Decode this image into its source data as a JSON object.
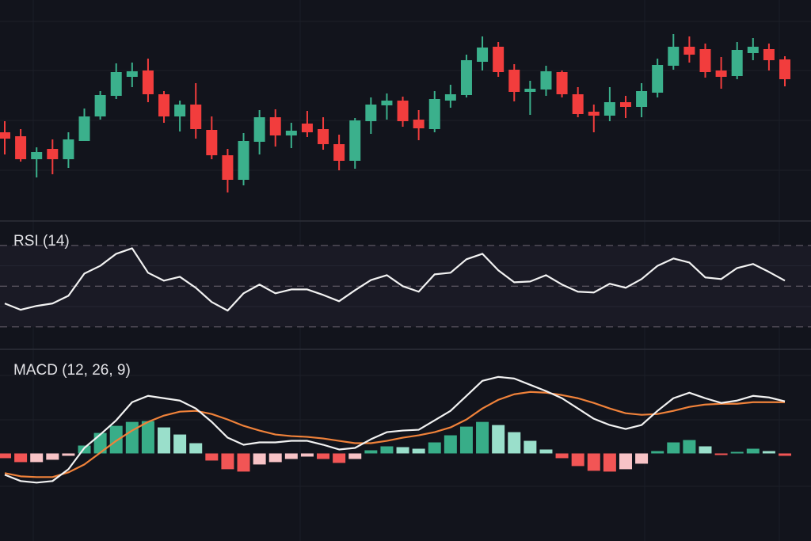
{
  "colors": {
    "background": "#12141c",
    "up": "#3bb08c",
    "down": "#f23d3d",
    "rsi_line": "#f2f2f2",
    "macd_line": "#f2f2f2",
    "signal_line": "#f0823a",
    "hist_up_strong": "#38ad88",
    "hist_up_weak": "#9adfcb",
    "hist_down_strong": "#f25555",
    "hist_down_weak": "#f8c3c6"
  },
  "chart_data": [
    {
      "type": "candlestick",
      "grid": true,
      "ohlc": [
        [
          133,
          147,
          105,
          125
        ],
        [
          128,
          137,
          96,
          99
        ],
        [
          99,
          114,
          76,
          108
        ],
        [
          112,
          124,
          80,
          99
        ],
        [
          99,
          133,
          88,
          124
        ],
        [
          122,
          163,
          122,
          153
        ],
        [
          153,
          185,
          149,
          180
        ],
        [
          179,
          220,
          175,
          209
        ],
        [
          203,
          221,
          190,
          210
        ],
        [
          211,
          226,
          171,
          181
        ],
        [
          181,
          185,
          145,
          153
        ],
        [
          153,
          173,
          134,
          168
        ],
        [
          168,
          195,
          125,
          137
        ],
        [
          136,
          153,
          99,
          104
        ],
        [
          104,
          112,
          57,
          73
        ],
        [
          73,
          132,
          66,
          122
        ],
        [
          121,
          161,
          105,
          152
        ],
        [
          152,
          162,
          115,
          129
        ],
        [
          129,
          145,
          113,
          135
        ],
        [
          144,
          160,
          127,
          133
        ],
        [
          137,
          152,
          111,
          118
        ],
        [
          118,
          130,
          85,
          97
        ],
        [
          97,
          151,
          87,
          148
        ],
        [
          147,
          177,
          131,
          168
        ],
        [
          167,
          182,
          149,
          173
        ],
        [
          173,
          178,
          140,
          147
        ],
        [
          149,
          161,
          123,
          138
        ],
        [
          137,
          185,
          133,
          175
        ],
        [
          173,
          193,
          164,
          181
        ],
        [
          180,
          231,
          177,
          224
        ],
        [
          222,
          254,
          211,
          240
        ],
        [
          241,
          247,
          203,
          209
        ],
        [
          212,
          219,
          172,
          184
        ],
        [
          184,
          198,
          155,
          188
        ],
        [
          187,
          217,
          179,
          210
        ],
        [
          209,
          211,
          177,
          181
        ],
        [
          181,
          190,
          152,
          156
        ],
        [
          159,
          168,
          133,
          154
        ],
        [
          154,
          190,
          147,
          171
        ],
        [
          171,
          179,
          151,
          165
        ],
        [
          165,
          195,
          152,
          185
        ],
        [
          183,
          226,
          177,
          218
        ],
        [
          217,
          257,
          212,
          241
        ],
        [
          241,
          254,
          221,
          231
        ],
        [
          238,
          245,
          202,
          209
        ],
        [
          211,
          228,
          188,
          203
        ],
        [
          204,
          247,
          200,
          237
        ],
        [
          233,
          252,
          224,
          241
        ],
        [
          238,
          245,
          211,
          224
        ],
        [
          225,
          229,
          191,
          200
        ]
      ]
    },
    {
      "type": "line",
      "title": "RSI (14)",
      "reference_levels": [
        70,
        50,
        30
      ],
      "ylim": [
        19,
        82
      ],
      "values": [
        41.5,
        38.4,
        40.3,
        41.5,
        45.3,
        56.2,
        60,
        65.9,
        68.6,
        56.6,
        52.7,
        54.6,
        49.2,
        42.2,
        38,
        46.5,
        50.8,
        46.5,
        48.4,
        48.4,
        45.7,
        42.6,
        48,
        53,
        55.4,
        50,
        47.3,
        55.8,
        56.6,
        63.2,
        65.9,
        57.8,
        51.9,
        52.3,
        55.4,
        50.8,
        47.3,
        46.9,
        51.2,
        49.2,
        53.5,
        60,
        63.6,
        61.6,
        54.3,
        53.5,
        58.9,
        60.9,
        57,
        52.7
      ]
    },
    {
      "type": "bar+line",
      "title": "MACD (12, 26, 9)",
      "ylim": [
        -11.1,
        13
      ],
      "macd": [
        -2.7,
        -3.5,
        -3.7,
        -3.5,
        -2.0,
        0.7,
        2.4,
        4.2,
        6.5,
        7.3,
        7.0,
        6.7,
        5.7,
        4.0,
        2.0,
        1.1,
        1.4,
        1.4,
        1.6,
        1.6,
        1.1,
        0.5,
        0.7,
        1.8,
        2.7,
        2.9,
        3.0,
        4.2,
        5.4,
        7.3,
        9.2,
        9.7,
        9.5,
        8.7,
        7.9,
        7.0,
        5.7,
        4.4,
        3.6,
        3.1,
        3.6,
        5.4,
        7.0,
        7.7,
        7.0,
        6.4,
        6.7,
        7.3,
        7.1,
        6.6
      ],
      "signal": [
        -2.5,
        -2.9,
        -3.0,
        -3.0,
        -2.4,
        -1.4,
        0.1,
        1.6,
        2.9,
        4.0,
        4.8,
        5.3,
        5.4,
        5.0,
        4.3,
        3.5,
        2.9,
        2.4,
        2.2,
        2.1,
        1.9,
        1.6,
        1.3,
        1.3,
        1.6,
        2.0,
        2.3,
        2.7,
        3.3,
        4.3,
        5.7,
        6.8,
        7.5,
        7.8,
        7.7,
        7.4,
        7.0,
        6.4,
        5.7,
        5.1,
        4.9,
        5.0,
        5.4,
        5.9,
        6.2,
        6.3,
        6.3,
        6.5,
        6.5,
        6.5
      ],
      "histogram": [
        -0.6,
        -1.1,
        -1.1,
        -0.8,
        -0.3,
        1.0,
        2.6,
        3.5,
        4.0,
        4.1,
        3.3,
        2.4,
        1.3,
        -0.9,
        -2.0,
        -2.3,
        -1.4,
        -1.1,
        -0.7,
        -0.4,
        -0.7,
        -1.2,
        -0.7,
        0.4,
        0.9,
        0.8,
        0.6,
        1.4,
        2.3,
        3.4,
        4.0,
        3.6,
        2.7,
        1.6,
        0.5,
        -0.6,
        -1.6,
        -2.2,
        -2.3,
        -2.0,
        -1.3,
        0.3,
        1.4,
        1.7,
        0.9,
        -0.2,
        0.2,
        0.6,
        0.3,
        -0.3
      ]
    }
  ]
}
